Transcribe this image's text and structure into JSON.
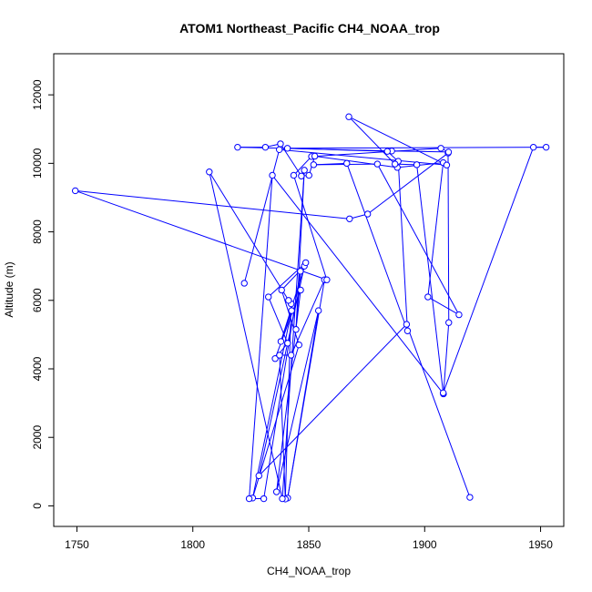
{
  "chart_data": {
    "type": "line",
    "title": "ATOM1 Northeast_Pacific CH4_NOAA_trop",
    "xlabel": "CH4_NOAA_trop",
    "ylabel": "Altitude (m)",
    "xlim": [
      1740,
      1960
    ],
    "ylim": [
      -600,
      13200
    ],
    "x_ticks": [
      1750,
      1800,
      1850,
      1900,
      1950
    ],
    "y_ticks": [
      0,
      2000,
      4000,
      6000,
      8000,
      10000,
      12000
    ],
    "x_tick_labels": [
      "1750",
      "1800",
      "1850",
      "1900",
      "1950"
    ],
    "y_tick_labels": [
      "0",
      "2000",
      "4000",
      "6000",
      "8000",
      "10000",
      "12000"
    ],
    "grid": false,
    "series_color": "#0000ff",
    "marker": "open-circle",
    "x": [
      1919.5,
      1892.2,
      1828.5,
      1848.1,
      1838.3,
      1845.8,
      1825.8,
      1842.6,
      1838.0,
      1848.7,
      1832.6,
      1840.9,
      1835.5,
      1846.5,
      1836.1,
      1854.2,
      1840.9,
      1856.8,
      1842.4,
      1837.4,
      1839.9,
      1842.4,
      1841.3,
      1807.1,
      1838.6,
      1848.1,
      1844.5,
      1846.4,
      1830.6,
      1824.3,
      1834.3,
      1908.1,
      1910.4,
      1910.1,
      1875.4,
      1867.6,
      1749.3,
      1857.8,
      1843.5,
      1851.2,
      1907.0,
      1910.3,
      1885.8,
      1819.3,
      1831.3,
      1837.8,
      1846.8,
      1850.1,
      1852.6,
      1888.2,
      1908.0,
      1901.4,
      1914.8,
      1879.6,
      1852.1,
      1866.4,
      1892.6,
      1888.6,
      1883.9,
      1840.8,
      1952.4,
      1946.9,
      1908.0,
      1896.6,
      1887.2,
      1867.3,
      1909.5,
      1837.3,
      1822.2
    ],
    "y": [
      250,
      5300,
      880,
      7000,
      6300,
      4700,
      230,
      5700,
      4800,
      7100,
      6100,
      4750,
      4300,
      6300,
      410,
      5700,
      230,
      6600,
      4400,
      4400,
      200,
      5900,
      6000,
      9750,
      210,
      9800,
      5150,
      6850,
      210,
      210,
      9650,
      3270,
      5350,
      10300,
      8520,
      8380,
      9200,
      6600,
      9650,
      10200,
      10440,
      10330,
      10360,
      10470,
      10470,
      10570,
      9630,
      9650,
      10210,
      9880,
      10020,
      6100,
      5580,
      9980,
      9960,
      10000,
      5110,
      10060,
      10350,
      10440,
      10470,
      10470,
      3300,
      9960,
      9980,
      11360,
      9950,
      10400,
      6500
    ]
  }
}
